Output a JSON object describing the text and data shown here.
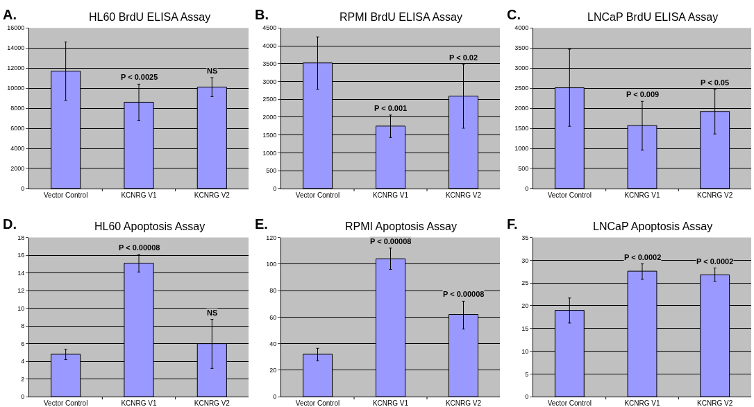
{
  "chart_data": [
    {
      "type": "bar",
      "title": "HL60 BrdU ELISA Assay",
      "categories": [
        "Vector Control",
        "KCNRG V1",
        "KCNRG V2"
      ],
      "values": [
        11700,
        8600,
        10100
      ],
      "errors": [
        [
          8800,
          14600
        ],
        [
          6800,
          10400
        ],
        [
          9150,
          11050
        ]
      ],
      "color": "#9999ff",
      "ylim": [
        0,
        16000
      ],
      "yticks": [
        0,
        2000,
        4000,
        6000,
        8000,
        10000,
        12000,
        14000,
        16000
      ],
      "grid": "y",
      "annotations": [
        "A.",
        "P < 0.0025",
        "NS"
      ]
    },
    {
      "type": "bar",
      "title": "RPMI BrdU ELISA Assay",
      "categories": [
        "Vector Control",
        "KCNRG V1",
        "KCNRG V2"
      ],
      "values": [
        3520,
        1750,
        2590
      ],
      "errors": [
        [
          2780,
          4250
        ],
        [
          1430,
          2060
        ],
        [
          1690,
          3480
        ]
      ],
      "color": "#9999ff",
      "ylim": [
        0,
        4500
      ],
      "yticks": [
        0,
        500,
        1000,
        1500,
        2000,
        2500,
        3000,
        3500,
        4000,
        4500
      ],
      "grid": "y",
      "annotations": [
        "B.",
        "P < 0.001",
        "P < 0.02"
      ]
    },
    {
      "type": "bar",
      "title": "LNCaP BrdU ELISA Assay",
      "categories": [
        "Vector Control",
        "KCNRG V1",
        "KCNRG V2"
      ],
      "values": [
        2510,
        1570,
        1920
      ],
      "errors": [
        [
          1550,
          3470
        ],
        [
          960,
          2170
        ],
        [
          1360,
          2470
        ]
      ],
      "color": "#9999ff",
      "ylim": [
        0,
        4000
      ],
      "yticks": [
        0,
        500,
        1000,
        1500,
        2000,
        2500,
        3000,
        3500,
        4000
      ],
      "grid": "y",
      "annotations": [
        "C.",
        "P < 0.009",
        "P < 0.05"
      ]
    },
    {
      "type": "bar",
      "title": "HL60 Apoptosis Assay",
      "categories": [
        "Vector Control",
        "KCNRG V1",
        "KCNRG V2"
      ],
      "values": [
        4.8,
        15.1,
        6.0
      ],
      "errors": [
        [
          4.2,
          5.35
        ],
        [
          14.1,
          16.05
        ],
        [
          3.2,
          8.75
        ]
      ],
      "color": "#9999ff",
      "ylim": [
        0,
        18
      ],
      "yticks": [
        0,
        2,
        4,
        6,
        8,
        10,
        12,
        14,
        16,
        18
      ],
      "grid": "y",
      "annotations": [
        "D.",
        "P < 0.00008",
        "NS"
      ]
    },
    {
      "type": "bar",
      "title": "RPMI Apoptosis Assay",
      "categories": [
        "Vector Control",
        "KCNRG V1",
        "KCNRG V2"
      ],
      "values": [
        32,
        104,
        62
      ],
      "errors": [
        [
          27,
          36.5
        ],
        [
          96,
          112
        ],
        [
          51,
          72
        ]
      ],
      "color": "#9999ff",
      "ylim": [
        0,
        120
      ],
      "yticks": [
        0,
        20,
        40,
        60,
        80,
        100,
        120
      ],
      "grid": "y",
      "annotations": [
        "E.",
        "P < 0.00008",
        "P < 0.00008"
      ]
    },
    {
      "type": "bar",
      "title": "LNCaP Apoptosis Assay",
      "categories": [
        "Vector Control",
        "KCNRG V1",
        "KCNRG V2"
      ],
      "values": [
        19,
        27.6,
        26.8
      ],
      "errors": [
        [
          16.2,
          21.7
        ],
        [
          25.8,
          29.2
        ],
        [
          25.4,
          28.3
        ]
      ],
      "color": "#9999ff",
      "ylim": [
        0,
        35
      ],
      "yticks": [
        0,
        5,
        10,
        15,
        20,
        25,
        30,
        35
      ],
      "grid": "y",
      "annotations": [
        "F.",
        "P < 0.0002",
        "P < 0.0002"
      ]
    }
  ]
}
